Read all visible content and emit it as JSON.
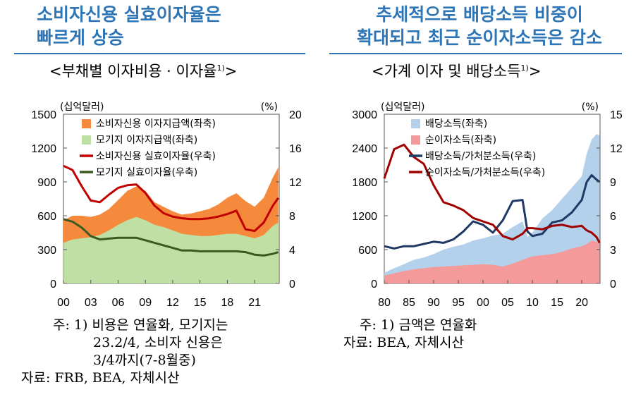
{
  "headline_left": [
    "소비자신용 실효이자율은",
    "빠르게 상승"
  ],
  "headline_right": [
    "추세적으로 배당소득 비중이",
    "확대되고 최근 순이자소득은 감소"
  ],
  "colors": {
    "headline": "#2e75b6",
    "orange": "#f58a3c",
    "light_green": "#bfe0a4",
    "red": "#c00000",
    "dark_green": "#3a5a22",
    "light_blue": "#b4d1ec",
    "pink": "#f59a9a",
    "navy": "#1f3864",
    "dark_red": "#a00000"
  },
  "notes_left": {
    "line1": "주: 1) 비용은 연율화, 모기지는",
    "line2": "23.2/4, 소비자 신용은",
    "line3": "3/4까지(7-8월중)",
    "line4": "자료: FRB, BEA, 자체시산"
  },
  "notes_right": {
    "line1": "주: 1) 금액은 연율화",
    "line2": "자료: BEA, 자체시산"
  },
  "chart_data": [
    {
      "type": "area",
      "title": "<부채별 이자비용 · 이자율",
      "title_sup": "1)",
      "title_end": ">",
      "left_unit": "(십억달러)",
      "right_unit": "(%)",
      "left_ticks": [
        "1500",
        "1200",
        "900",
        "600",
        "300",
        "0"
      ],
      "right_ticks": [
        "20",
        "16",
        "12",
        "8",
        "4",
        "0"
      ],
      "x_ticks": [
        "00",
        "03",
        "06",
        "09",
        "12",
        "15",
        "18",
        "21"
      ],
      "x_tick_values": [
        2000,
        2003,
        2006,
        2009,
        2012,
        2015,
        2018,
        2021
      ],
      "xlim": [
        2000,
        2023.7
      ],
      "ylim_left": [
        0,
        1500
      ],
      "ylim_right": [
        0,
        20
      ],
      "legend": [
        {
          "label": "소비자신용 이자지급액(좌축)",
          "kind": "box",
          "color_key": "orange"
        },
        {
          "label": "모기지 이자지급액(좌축)",
          "kind": "box",
          "color_key": "light_green"
        },
        {
          "label": "소비자신용 실효이자율(우축)",
          "kind": "line",
          "color_key": "red"
        },
        {
          "label": "모기지 실효이자율(우축)",
          "kind": "line",
          "color_key": "dark_green"
        }
      ],
      "x": [
        2000,
        2001,
        2002,
        2003,
        2004,
        2005,
        2006,
        2007,
        2008,
        2009,
        2010,
        2011,
        2012,
        2013,
        2014,
        2015,
        2016,
        2017,
        2018,
        2019,
        2020,
        2021,
        2022,
        2023,
        2023.6
      ],
      "series": [
        {
          "name": "모기지 이자지급액(좌축)",
          "axis": "left",
          "kind": "area",
          "color_key": "light_green",
          "values": [
            360,
            390,
            400,
            410,
            430,
            470,
            520,
            560,
            590,
            560,
            520,
            500,
            470,
            440,
            430,
            420,
            420,
            430,
            440,
            440,
            420,
            400,
            430,
            510,
            540
          ]
        },
        {
          "name": "모기지+소비자신용 이자지급액(좌축, 누적)",
          "axis": "left",
          "kind": "area",
          "color_key": "orange",
          "values": [
            560,
            600,
            600,
            590,
            610,
            660,
            740,
            820,
            860,
            820,
            720,
            680,
            640,
            610,
            620,
            640,
            660,
            700,
            760,
            800,
            730,
            680,
            760,
            940,
            1030
          ]
        },
        {
          "name": "소비자신용 실효이자율(우축)",
          "axis": "right",
          "kind": "line",
          "color_key": "red",
          "values": [
            13.9,
            13.4,
            11.5,
            9.8,
            9.6,
            10.5,
            11.3,
            11.6,
            11.7,
            10.7,
            9.2,
            8.3,
            7.9,
            7.7,
            7.6,
            7.6,
            7.7,
            7.9,
            8.2,
            8.6,
            6.4,
            6.2,
            7.2,
            9.2,
            10.1
          ]
        },
        {
          "name": "모기지 실효이자율(우축)",
          "axis": "right",
          "kind": "line",
          "color_key": "dark_green",
          "values": [
            7.6,
            7.3,
            6.6,
            5.6,
            5.2,
            5.3,
            5.4,
            5.4,
            5.4,
            5.1,
            4.8,
            4.5,
            4.2,
            3.9,
            3.9,
            3.8,
            3.8,
            3.8,
            3.8,
            3.8,
            3.7,
            3.4,
            3.3,
            3.5,
            3.7
          ]
        }
      ]
    },
    {
      "type": "area",
      "title": "<가계 이자 및 배당소득",
      "title_sup": "1)",
      "title_end": ">",
      "left_unit": "(십억달러)",
      "right_unit": "(%)",
      "left_ticks": [
        "3000",
        "2400",
        "1800",
        "1200",
        "600",
        "0"
      ],
      "right_ticks": [
        "15",
        "12",
        "9",
        "6",
        "3",
        "0"
      ],
      "x_ticks": [
        "80",
        "85",
        "90",
        "95",
        "00",
        "05",
        "10",
        "15",
        "20"
      ],
      "x_tick_values": [
        1980,
        1985,
        1990,
        1995,
        2000,
        2005,
        2010,
        2015,
        2020
      ],
      "xlim": [
        1980,
        2023.7
      ],
      "ylim_left": [
        0,
        3000
      ],
      "ylim_right": [
        0,
        15
      ],
      "legend": [
        {
          "label": "배당소득(좌축)",
          "kind": "box",
          "color_key": "light_blue"
        },
        {
          "label": "순이자소득(좌축)",
          "kind": "box",
          "color_key": "pink"
        },
        {
          "label": "배당소득/가처분소득(우축)",
          "kind": "line",
          "color_key": "navy"
        },
        {
          "label": "순이자소득/가처분소득(우축)",
          "kind": "line",
          "color_key": "dark_red"
        }
      ],
      "x": [
        1980,
        1982,
        1984,
        1986,
        1988,
        1990,
        1992,
        1994,
        1996,
        1998,
        2000,
        2002,
        2004,
        2006,
        2008,
        2009,
        2010,
        2012,
        2014,
        2016,
        2018,
        2020,
        2021,
        2022,
        2023,
        2023.6
      ],
      "series": [
        {
          "name": "배당소득(좌축)",
          "axis": "left",
          "kind": "area",
          "color_key": "light_blue",
          "values": [
            190,
            270,
            340,
            420,
            460,
            520,
            600,
            650,
            690,
            760,
            800,
            850,
            880,
            1000,
            1100,
            820,
            900,
            1150,
            1300,
            1500,
            1700,
            1900,
            2300,
            2550,
            2650,
            2620
          ]
        },
        {
          "name": "순이자소득(좌축)",
          "axis": "left",
          "kind": "area",
          "color_key": "pink",
          "values": [
            140,
            180,
            220,
            250,
            270,
            290,
            300,
            310,
            320,
            330,
            340,
            330,
            300,
            350,
            420,
            450,
            480,
            500,
            520,
            560,
            620,
            660,
            700,
            760,
            740,
            700
          ]
        },
        {
          "name": "배당소득/가처분소득(우축)",
          "axis": "right",
          "kind": "line",
          "color_key": "navy",
          "values": [
            3.3,
            3.1,
            3.3,
            3.3,
            3.5,
            3.7,
            3.6,
            3.9,
            4.6,
            5.5,
            5.2,
            4.5,
            5.6,
            7.3,
            7.4,
            4.6,
            4.2,
            4.4,
            5.4,
            5.6,
            6.3,
            7.4,
            9.0,
            9.6,
            9.2,
            9.0
          ]
        },
        {
          "name": "순이자소득/가처분소득(우축)",
          "axis": "right",
          "kind": "line",
          "color_key": "dark_red",
          "values": [
            9.3,
            11.9,
            12.3,
            11.2,
            10.6,
            8.7,
            7.2,
            6.9,
            6.5,
            5.8,
            5.5,
            5.2,
            4.2,
            3.9,
            4.4,
            4.9,
            4.9,
            4.8,
            5.1,
            5.2,
            5.0,
            5.1,
            4.7,
            4.5,
            4.1,
            3.6
          ]
        }
      ]
    }
  ]
}
